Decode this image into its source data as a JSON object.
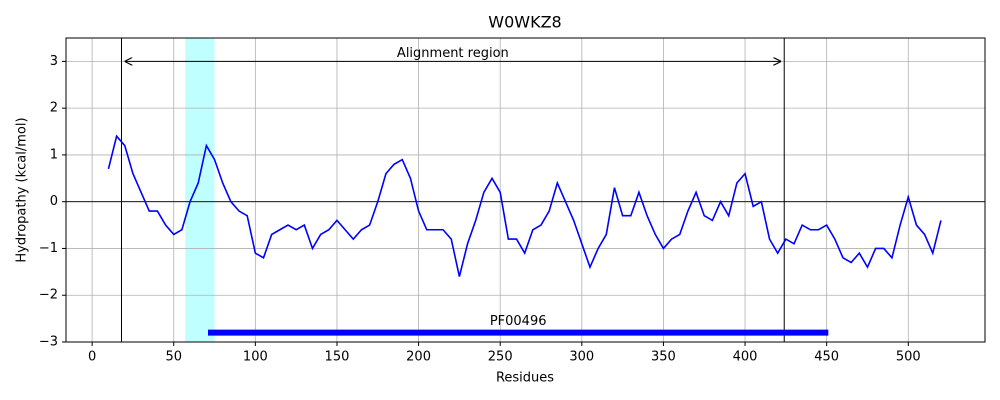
{
  "chart_data": {
    "type": "line",
    "title": "W0WKZ8",
    "x_label": "Residues",
    "y_label": "Hydropathy (kcal/mol)",
    "x": [
      10,
      15,
      20,
      25,
      30,
      35,
      40,
      45,
      50,
      55,
      60,
      65,
      70,
      75,
      80,
      85,
      90,
      95,
      100,
      105,
      110,
      115,
      120,
      125,
      130,
      135,
      140,
      145,
      150,
      155,
      160,
      165,
      170,
      175,
      180,
      185,
      190,
      195,
      200,
      205,
      210,
      215,
      220,
      225,
      230,
      235,
      240,
      245,
      250,
      255,
      260,
      265,
      270,
      275,
      280,
      285,
      290,
      295,
      300,
      305,
      310,
      315,
      320,
      325,
      330,
      335,
      340,
      345,
      350,
      355,
      360,
      365,
      370,
      375,
      380,
      385,
      390,
      395,
      400,
      405,
      410,
      415,
      420,
      425,
      430,
      435,
      440,
      445,
      450,
      455,
      460,
      465,
      470,
      475,
      480,
      485,
      490,
      495,
      500,
      505,
      510,
      515,
      520
    ],
    "series": [
      {
        "name": "Hydropathy",
        "color": "#0000ff",
        "values": [
          0.7,
          1.4,
          1.2,
          0.6,
          0.2,
          -0.2,
          -0.2,
          -0.5,
          -0.7,
          -0.6,
          0.0,
          0.4,
          1.2,
          0.9,
          0.4,
          0.0,
          -0.2,
          -0.3,
          -1.1,
          -1.2,
          -0.7,
          -0.6,
          -0.5,
          -0.6,
          -0.5,
          -1.0,
          -0.7,
          -0.6,
          -0.4,
          -0.6,
          -0.8,
          -0.6,
          -0.5,
          0.0,
          0.6,
          0.8,
          0.9,
          0.5,
          -0.2,
          -0.6,
          -0.6,
          -0.6,
          -0.8,
          -1.6,
          -0.9,
          -0.4,
          0.2,
          0.5,
          0.2,
          -0.8,
          -0.8,
          -1.1,
          -0.6,
          -0.5,
          -0.2,
          0.4,
          0.0,
          -0.4,
          -0.9,
          -1.4,
          -1.0,
          -0.7,
          0.3,
          -0.3,
          -0.3,
          0.2,
          -0.3,
          -0.7,
          -1.0,
          -0.8,
          -0.7,
          -0.2,
          0.2,
          -0.3,
          -0.4,
          0.0,
          -0.3,
          0.4,
          0.6,
          -0.1,
          0.0,
          -0.8,
          -1.1,
          -0.8,
          -0.9,
          -0.5,
          -0.6,
          -0.6,
          -0.5,
          -0.8,
          -1.2,
          -1.3,
          -1.1,
          -1.4,
          -1.0,
          -1.0,
          -1.2,
          -0.5,
          0.1,
          -0.5,
          -0.7,
          -1.1,
          -0.4
        ]
      }
    ],
    "xlim": [
      -16,
      547
    ],
    "ylim": [
      -3,
      3.5
    ],
    "xticks": [
      0,
      50,
      100,
      150,
      200,
      250,
      300,
      350,
      400,
      450,
      500
    ],
    "yticks": [
      {
        "value": -3,
        "label": "−3"
      },
      {
        "value": -2,
        "label": "−2"
      },
      {
        "value": -1,
        "label": "−1"
      },
      0,
      1,
      2,
      3
    ],
    "grid": true,
    "alignment_region": {
      "label": "Alignment region",
      "start": 18,
      "end": 424,
      "y": 3
    },
    "highlight": {
      "start": 57,
      "end": 75,
      "color": "#c0ffff"
    },
    "domain": {
      "label": "PF00496",
      "start": 71,
      "end": 451,
      "y": -2.8,
      "color": "#0000ff"
    }
  }
}
